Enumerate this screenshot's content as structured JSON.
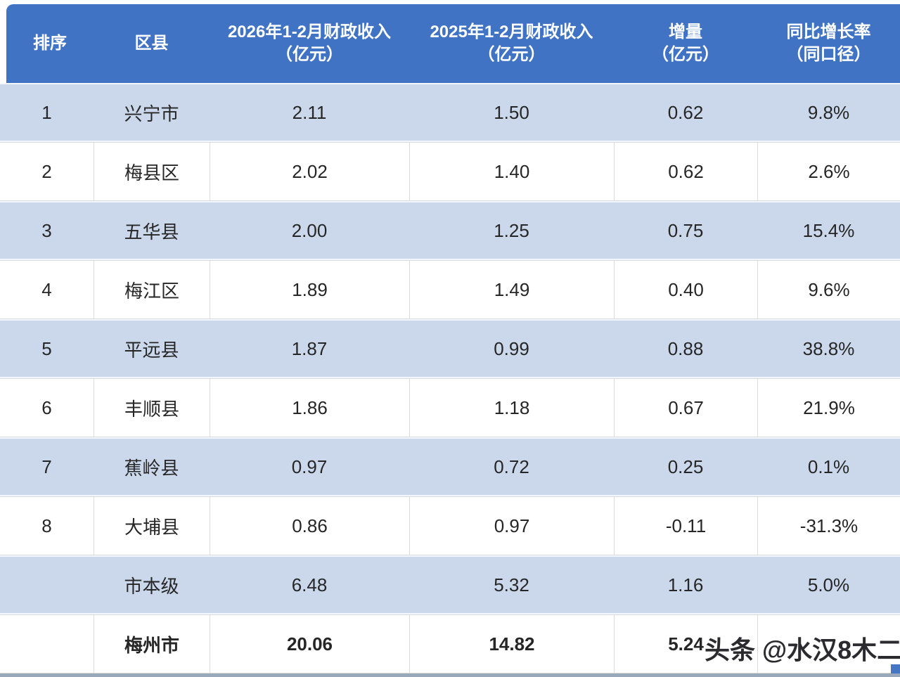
{
  "page": {
    "watermark": "头条 @水汉8木二"
  },
  "colors": {
    "header_bg": "#4173C4",
    "band_row_bg": "#CBD8EB",
    "white_row_bg": "#FFFFFF",
    "header_text": "#FFFFFF",
    "body_text": "#262626",
    "grid_line": "#D9D9D9",
    "bottom_bar": "#9AA8BC",
    "corner_mark": "#4576C4"
  },
  "chart_data": {
    "type": "table",
    "title": "",
    "columns": [
      {
        "title": "排序",
        "sub": ""
      },
      {
        "title": "区县",
        "sub": ""
      },
      {
        "title": "2026年1-2月财政收入",
        "sub": "（亿元）"
      },
      {
        "title": "2025年1-2月财政收入",
        "sub": "（亿元）"
      },
      {
        "title": "增量",
        "sub": "（亿元）"
      },
      {
        "title": "同比增长率",
        "sub": "（同口径）"
      }
    ],
    "rows": [
      {
        "rank": "1",
        "name": "兴宁市",
        "rev2026": "2.11",
        "rev2025": "1.50",
        "delta": "0.62",
        "growth": "9.8%"
      },
      {
        "rank": "2",
        "name": "梅县区",
        "rev2026": "2.02",
        "rev2025": "1.40",
        "delta": "0.62",
        "growth": "2.6%"
      },
      {
        "rank": "3",
        "name": "五华县",
        "rev2026": "2.00",
        "rev2025": "1.25",
        "delta": "0.75",
        "growth": "15.4%"
      },
      {
        "rank": "4",
        "name": "梅江区",
        "rev2026": "1.89",
        "rev2025": "1.49",
        "delta": "0.40",
        "growth": "9.6%"
      },
      {
        "rank": "5",
        "name": "平远县",
        "rev2026": "1.87",
        "rev2025": "0.99",
        "delta": "0.88",
        "growth": "38.8%"
      },
      {
        "rank": "6",
        "name": "丰顺县",
        "rev2026": "1.86",
        "rev2025": "1.18",
        "delta": "0.67",
        "growth": "21.9%"
      },
      {
        "rank": "7",
        "name": "蕉岭县",
        "rev2026": "0.97",
        "rev2025": "0.72",
        "delta": "0.25",
        "growth": "0.1%"
      },
      {
        "rank": "8",
        "name": "大埔县",
        "rev2026": "0.86",
        "rev2025": "0.97",
        "delta": "-0.11",
        "growth": "-31.3%"
      },
      {
        "rank": "",
        "name": "市本级",
        "rev2026": "6.48",
        "rev2025": "5.32",
        "delta": "1.16",
        "growth": "5.0%"
      },
      {
        "rank": "",
        "name": "梅州市",
        "rev2026": "20.06",
        "rev2025": "14.82",
        "delta": "5.24",
        "growth": ""
      }
    ]
  }
}
